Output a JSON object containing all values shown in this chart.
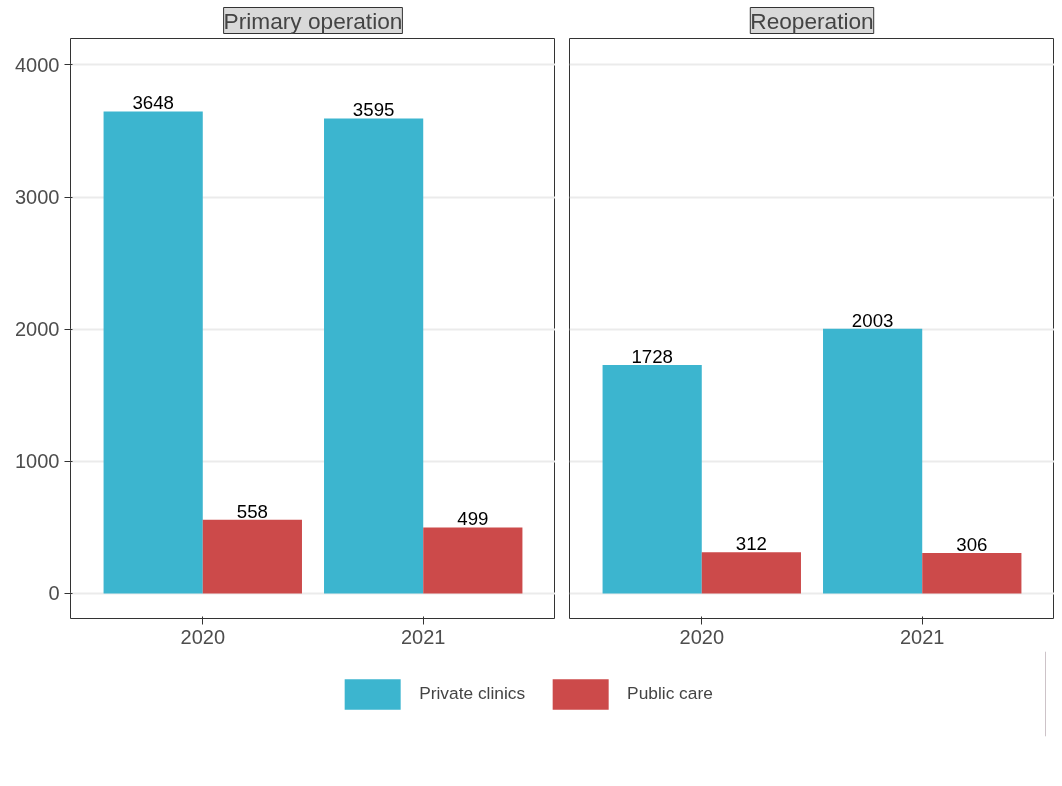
{
  "chart_data": [
    {
      "type": "bar",
      "title": "Primary operation",
      "categories": [
        "2020",
        "2021"
      ],
      "series": [
        {
          "name": "Private clinics",
          "color": "#3cb5cf",
          "values": [
            3648,
            3595
          ]
        },
        {
          "name": "Public care",
          "color": "#cc4a4a",
          "values": [
            558,
            499
          ]
        }
      ],
      "ylim": [
        -190,
        4200
      ],
      "yticks": [
        0,
        1000,
        2000,
        3000,
        4000
      ],
      "grid": "y",
      "data_labels": true,
      "legend": "bottom"
    },
    {
      "type": "bar",
      "title": "Reoperation",
      "categories": [
        "2020",
        "2021"
      ],
      "series": [
        {
          "color": "#3cb5cf",
          "values": [
            1728,
            2003
          ]
        },
        {
          "color": "#cc4a4a",
          "values": [
            312,
            306
          ]
        }
      ],
      "ylim": [
        -190,
        4200
      ],
      "yticks": [
        0,
        1000,
        2000,
        3000,
        4000
      ],
      "grid": "y",
      "data_labels": true,
      "tick_labels": "x"
    }
  ]
}
